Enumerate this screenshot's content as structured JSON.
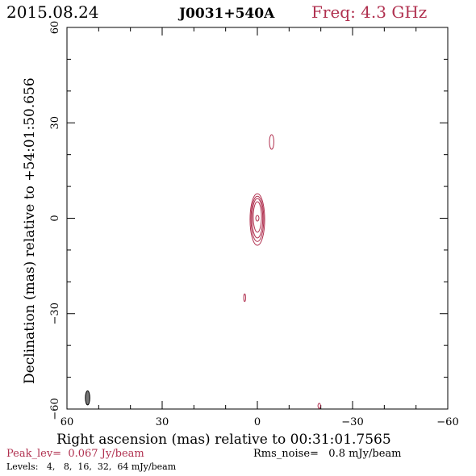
{
  "header": {
    "date": "2015.08.24",
    "source": "J0031+540A",
    "freq": "Freq: 4.3 GHz"
  },
  "colors": {
    "accent": "#b0304f",
    "axis": "#000000",
    "beam_fill": "#777777"
  },
  "chart_data": {
    "type": "contour",
    "title": "J0031+540A",
    "xlabel": "Right ascension (mas) relative to 00:31:01.7565",
    "ylabel": "Declination (mas) relative to +54:01:50.656",
    "xlim": [
      60,
      -60
    ],
    "ylim": [
      -60,
      60
    ],
    "x_ticks": [
      60,
      30,
      0,
      -30,
      -60
    ],
    "y_ticks": [
      -60,
      -30,
      0,
      30,
      60
    ],
    "x_tick_labels": [
      "60",
      "30",
      "0",
      "−30",
      "−60"
    ],
    "y_tick_labels": [
      "−60",
      "−30",
      "0",
      "30",
      "60"
    ],
    "contour_levels_mJy": [
      4,
      8,
      16,
      32,
      64
    ],
    "components": [
      {
        "x": 0,
        "y": 0,
        "contours": [
          {
            "level": 4,
            "rx": 2.3,
            "ry": 8.1,
            "cy": -0.4
          },
          {
            "level": 8,
            "rx": 2.0,
            "ry": 7.1,
            "cy": -0.2
          },
          {
            "level": 16,
            "rx": 1.7,
            "ry": 6.2,
            "cy": 0.0
          },
          {
            "level": 32,
            "rx": 1.3,
            "ry": 4.8,
            "cy": 0.4
          },
          {
            "level": 64,
            "rx": 0.5,
            "ry": 0.9,
            "cy": 0.0
          }
        ]
      },
      {
        "x": -4.5,
        "y": 24,
        "contours": [
          {
            "level": 4,
            "rx": 0.7,
            "ry": 2.3,
            "cy": 0
          }
        ]
      },
      {
        "x": 4,
        "y": -25,
        "contours": [
          {
            "level": 4,
            "rx": 0.3,
            "ry": 1.2,
            "cy": 0
          }
        ]
      },
      {
        "x": -19.5,
        "y": -59,
        "contours": [
          {
            "level": 4,
            "rx": 0.4,
            "ry": 0.8,
            "cy": 0
          }
        ]
      }
    ],
    "beam": {
      "x": 53.5,
      "y": -56.5,
      "major": 4.4,
      "minor": 1.4,
      "pa_deg": 0
    }
  },
  "footer": {
    "peak": "Peak_lev=  0.067 Jy/beam",
    "rms": "Rms_noise=   0.8 mJy/beam",
    "levels": "Levels:   4,   8,  16,  32,  64 mJy/beam"
  }
}
